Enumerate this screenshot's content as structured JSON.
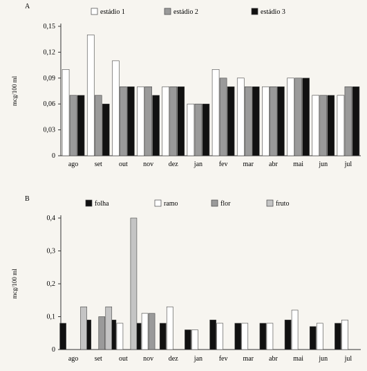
{
  "chart_data": [
    {
      "panel": "A",
      "type": "bar",
      "ylabel": "mcg/100 ml",
      "ylim": [
        0,
        0.15
      ],
      "yticks": [
        "0",
        "0,03",
        "0,06",
        "0,09",
        "0,12",
        "0,15"
      ],
      "categories": [
        "ago",
        "set",
        "out",
        "nov",
        "dez",
        "jan",
        "fev",
        "mar",
        "abr",
        "mai",
        "jun",
        "jul"
      ],
      "category_labels": [
        "ago",
        "set",
        "out",
        "nov",
        "dez",
        "jan",
        "fev",
        "mar",
        "abr",
        "mai",
        "jun",
        "jul"
      ],
      "series": [
        {
          "name": "estádio 1",
          "style": "white",
          "values": [
            0.1,
            0.14,
            0.11,
            0.08,
            0.08,
            0.06,
            0.1,
            0.09,
            0.08,
            0.09,
            0.07,
            0.07
          ]
        },
        {
          "name": "estádio 2",
          "style": "gray",
          "values": [
            0.07,
            0.07,
            0.08,
            0.08,
            0.08,
            0.06,
            0.09,
            0.08,
            0.08,
            0.09,
            0.07,
            0.08
          ]
        },
        {
          "name": "estádio 3",
          "style": "black",
          "values": [
            0.07,
            0.06,
            0.08,
            0.07,
            0.08,
            0.06,
            0.08,
            0.08,
            0.08,
            0.09,
            0.07,
            0.08
          ]
        }
      ],
      "legend": "top"
    },
    {
      "panel": "B",
      "type": "bar",
      "ylabel": "mcg/100 ml",
      "ylim": [
        0,
        0.4
      ],
      "yticks": [
        "0",
        "0,1",
        "0,2",
        "0,3",
        "0,4"
      ],
      "categories": [
        "ago",
        "set",
        "out",
        "nov",
        "dez",
        "jan",
        "fev",
        "mar",
        "abr",
        "mai",
        "jun",
        "jul"
      ],
      "category_labels": [
        "ago",
        "set",
        "out",
        "nov",
        "dez",
        "jan",
        "fev",
        "mar",
        "abr",
        "mai",
        "jun",
        "jul"
      ],
      "series": [
        {
          "name": "folha",
          "style": "black",
          "values": [
            0.08,
            0.09,
            0.09,
            0.08,
            0.08,
            0.06,
            0.09,
            0.08,
            0.08,
            0.09,
            0.07,
            0.08
          ]
        },
        {
          "name": "ramo",
          "style": "white",
          "values": [
            null,
            null,
            0.08,
            0.11,
            0.13,
            0.06,
            0.08,
            0.08,
            0.08,
            0.12,
            0.08,
            0.09
          ]
        },
        {
          "name": "flor",
          "style": "gray",
          "values": [
            null,
            0.1,
            null,
            0.11,
            null,
            null,
            null,
            null,
            null,
            null,
            null,
            null
          ]
        },
        {
          "name": "fruto",
          "style": "lightgray",
          "values": [
            0.13,
            0.13,
            0.4,
            null,
            null,
            null,
            null,
            null,
            null,
            null,
            null,
            null
          ]
        }
      ],
      "legend": "top"
    }
  ],
  "colors": {
    "white": "#ffffff",
    "gray": "#9a9a9a",
    "lightgray": "#c4c4c4",
    "black": "#111111",
    "axis": "#333333"
  }
}
